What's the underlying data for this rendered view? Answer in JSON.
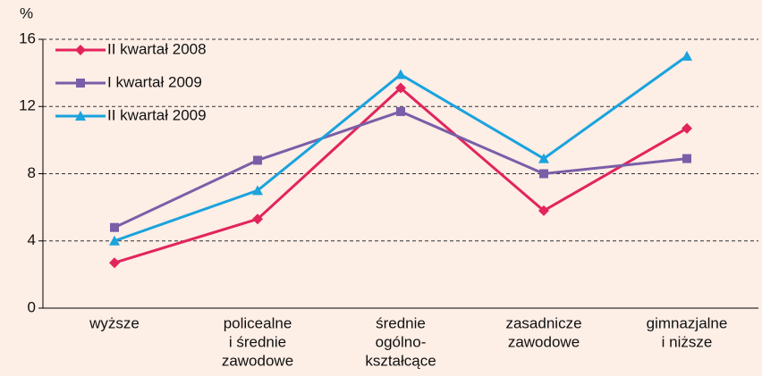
{
  "chart_data": {
    "type": "line",
    "ylabel": "%",
    "categories": [
      [
        "wyższe"
      ],
      [
        "policealne",
        "i średnie",
        "zawodowe"
      ],
      [
        "średnie",
        "ogólno-",
        "kształcące"
      ],
      [
        "zasadnicze",
        "zawodowe"
      ],
      [
        "gimnazjalne",
        "i niższe"
      ]
    ],
    "series": [
      {
        "name": "II kwartał 2008",
        "color": "#e2245c",
        "marker": "diamond",
        "values": [
          2.7,
          5.3,
          13.1,
          5.8,
          10.7
        ]
      },
      {
        "name": "I kwartał 2009",
        "color": "#7a5ea8",
        "marker": "square",
        "values": [
          4.8,
          8.8,
          11.7,
          8.0,
          8.9
        ]
      },
      {
        "name": "II kwartał 2009",
        "color": "#1aa3dd",
        "marker": "triangle",
        "values": [
          4.0,
          7.0,
          13.9,
          8.9,
          15.0
        ]
      }
    ],
    "ylim": [
      0,
      16
    ],
    "yticks": [
      0,
      4,
      8,
      12,
      16
    ],
    "grid": true,
    "legend": "top-left"
  }
}
